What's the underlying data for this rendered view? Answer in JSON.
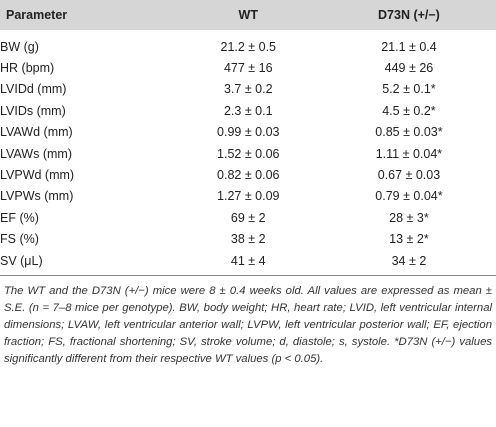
{
  "table": {
    "header": [
      "Parameter",
      "WT",
      "D73N (+/−)"
    ],
    "rows": [
      [
        "BW (g)",
        "21.2 ± 0.5",
        "21.1 ± 0.4"
      ],
      [
        "HR (bpm)",
        "477 ± 16",
        "449 ± 26"
      ],
      [
        "LVIDd (mm)",
        "3.7 ± 0.2",
        "5.2 ± 0.1*"
      ],
      [
        "LVIDs (mm)",
        "2.3 ± 0.1",
        "4.5 ± 0.2*"
      ],
      [
        "LVAWd (mm)",
        "0.99 ± 0.03",
        "0.85 ± 0.03*"
      ],
      [
        "LVAWs (mm)",
        "1.52 ± 0.06",
        "1.11 ± 0.04*"
      ],
      [
        "LVPWd (mm)",
        "0.82 ± 0.06",
        "0.67 ± 0.03"
      ],
      [
        "LVPWs (mm)",
        "1.27 ± 0.09",
        "0.79 ± 0.04*"
      ],
      [
        "EF (%)",
        "69 ± 2",
        "28 ± 3*"
      ],
      [
        "FS (%)",
        "38 ± 2",
        "13 ± 2*"
      ],
      [
        "SV (μL)",
        "41 ± 4",
        "34 ± 2"
      ]
    ]
  },
  "footnote": "The WT and the D73N (+/−) mice were 8 ± 0.4 weeks old. All values are expressed as mean ± S.E. (n = 7–8 mice per genotype). BW, body weight; HR, heart rate; LVID, left ventricular internal dimensions; LVAW, left ventricular anterior wall; LVPW, left ventricular posterior wall; EF, ejection fraction; FS, fractional shortening; SV, stroke volume; d, diastole; s, systole. *D73N (+/−) values significantly different from their respective WT values (p < 0.05)."
}
